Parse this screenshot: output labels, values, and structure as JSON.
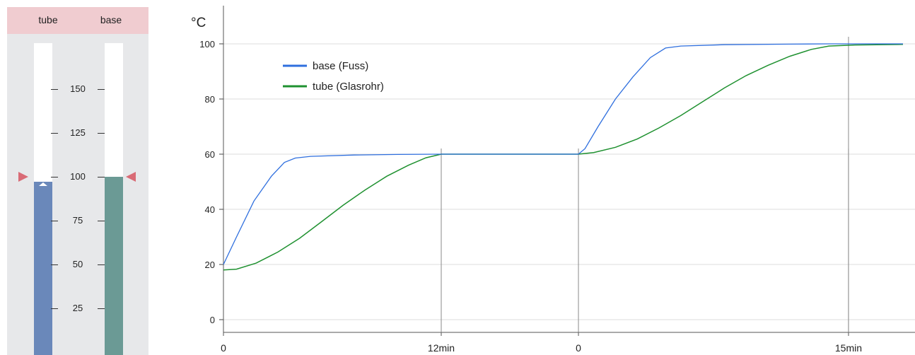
{
  "gauges": {
    "tube": {
      "label": "tube",
      "value": 95,
      "color": "#6a88ba"
    },
    "base": {
      "label": "base",
      "value": 100,
      "color": "#6b9a95"
    },
    "setpoint": 100,
    "scale_ticks": [
      "150",
      "125",
      "100",
      "75",
      "50",
      "25"
    ],
    "header_color": "#f0ccd0",
    "marker_color": "#d96b76"
  },
  "chart_data": {
    "type": "line",
    "ylabel": "°C",
    "yticks": [
      "0",
      "20",
      "40",
      "60",
      "80",
      "100"
    ],
    "ylim": [
      -5,
      105
    ],
    "grid": true,
    "legend_position": "top-left",
    "x_labels": [
      "0",
      "12min",
      "0",
      "15min"
    ],
    "series": [
      {
        "name": "base  (Fuss)",
        "color": "#2f6fde",
        "points": [
          [
            0,
            20
          ],
          [
            0.06,
            30
          ],
          [
            0.14,
            43
          ],
          [
            0.22,
            52
          ],
          [
            0.28,
            57
          ],
          [
            0.33,
            58.6
          ],
          [
            0.4,
            59.2
          ],
          [
            0.6,
            59.7
          ],
          [
            0.8,
            59.9
          ],
          [
            1,
            60
          ],
          [
            1.4,
            60
          ],
          [
            1.63,
            60
          ],
          [
            1.66,
            62
          ],
          [
            1.72,
            70
          ],
          [
            1.8,
            80
          ],
          [
            1.88,
            88
          ],
          [
            1.96,
            95
          ],
          [
            2.03,
            98.5
          ],
          [
            2.1,
            99.2
          ],
          [
            2.3,
            99.7
          ],
          [
            2.6,
            99.9
          ],
          [
            2.78,
            100
          ],
          [
            3.12,
            100
          ]
        ]
      },
      {
        "name": "tube  (Glasrohr)",
        "color": "#1f9130",
        "points": [
          [
            0,
            18
          ],
          [
            0.06,
            18.3
          ],
          [
            0.15,
            20.5
          ],
          [
            0.25,
            24.5
          ],
          [
            0.35,
            29.5
          ],
          [
            0.45,
            35.5
          ],
          [
            0.55,
            41.5
          ],
          [
            0.65,
            47
          ],
          [
            0.75,
            52
          ],
          [
            0.85,
            56
          ],
          [
            0.93,
            58.7
          ],
          [
            1,
            60
          ],
          [
            1.4,
            60
          ],
          [
            1.63,
            60
          ],
          [
            1.7,
            60.6
          ],
          [
            1.8,
            62.5
          ],
          [
            1.9,
            65.5
          ],
          [
            2.0,
            69.5
          ],
          [
            2.1,
            74
          ],
          [
            2.2,
            79
          ],
          [
            2.3,
            84
          ],
          [
            2.4,
            88.5
          ],
          [
            2.5,
            92.2
          ],
          [
            2.6,
            95.5
          ],
          [
            2.7,
            98
          ],
          [
            2.78,
            99.2
          ],
          [
            2.9,
            99.6
          ],
          [
            3.12,
            99.8
          ]
        ]
      }
    ]
  }
}
